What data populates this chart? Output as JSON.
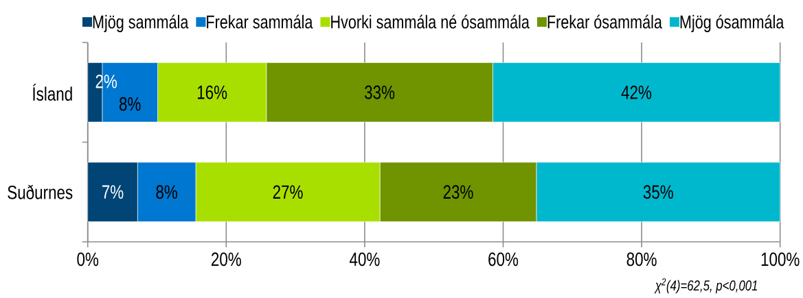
{
  "chart_data": {
    "type": "bar",
    "orientation": "horizontal",
    "stacked": true,
    "categories": [
      "Ísland",
      "Suðurnes"
    ],
    "series": [
      {
        "name": "Mjög sammála",
        "color": "#004576",
        "values": [
          2.1,
          7.2
        ],
        "value_labels": [
          "2%",
          "7%"
        ]
      },
      {
        "name": "Frekar sammála",
        "color": "#0077d0",
        "values": [
          8.0,
          8.4
        ],
        "value_labels": [
          "8%",
          "8%"
        ]
      },
      {
        "name": "Hvorki sammála né ósammála",
        "color": "#a9df00",
        "values": [
          15.7,
          26.6
        ],
        "value_labels": [
          "16%",
          "27%"
        ]
      },
      {
        "name": "Frekar ósammála",
        "color": "#6f9400",
        "values": [
          32.7,
          22.6
        ],
        "value_labels": [
          "33%",
          "23%"
        ]
      },
      {
        "name": "Mjög ósammála",
        "color": "#00b8ce",
        "values": [
          41.5,
          35.2
        ],
        "value_labels": [
          "42%",
          "35%"
        ]
      }
    ],
    "xlim": [
      0,
      100
    ],
    "xticks": [
      {
        "value": 0,
        "label": "0%"
      },
      {
        "value": 20,
        "label": "20%"
      },
      {
        "value": 40,
        "label": "40%"
      },
      {
        "value": 60,
        "label": "60%"
      },
      {
        "value": 80,
        "label": "80%"
      },
      {
        "value": 100,
        "label": "100%"
      }
    ],
    "grid": "x",
    "legend": "top",
    "annotations": [
      "χ$^{2}$(4)=62,5, p<0,001"
    ]
  }
}
